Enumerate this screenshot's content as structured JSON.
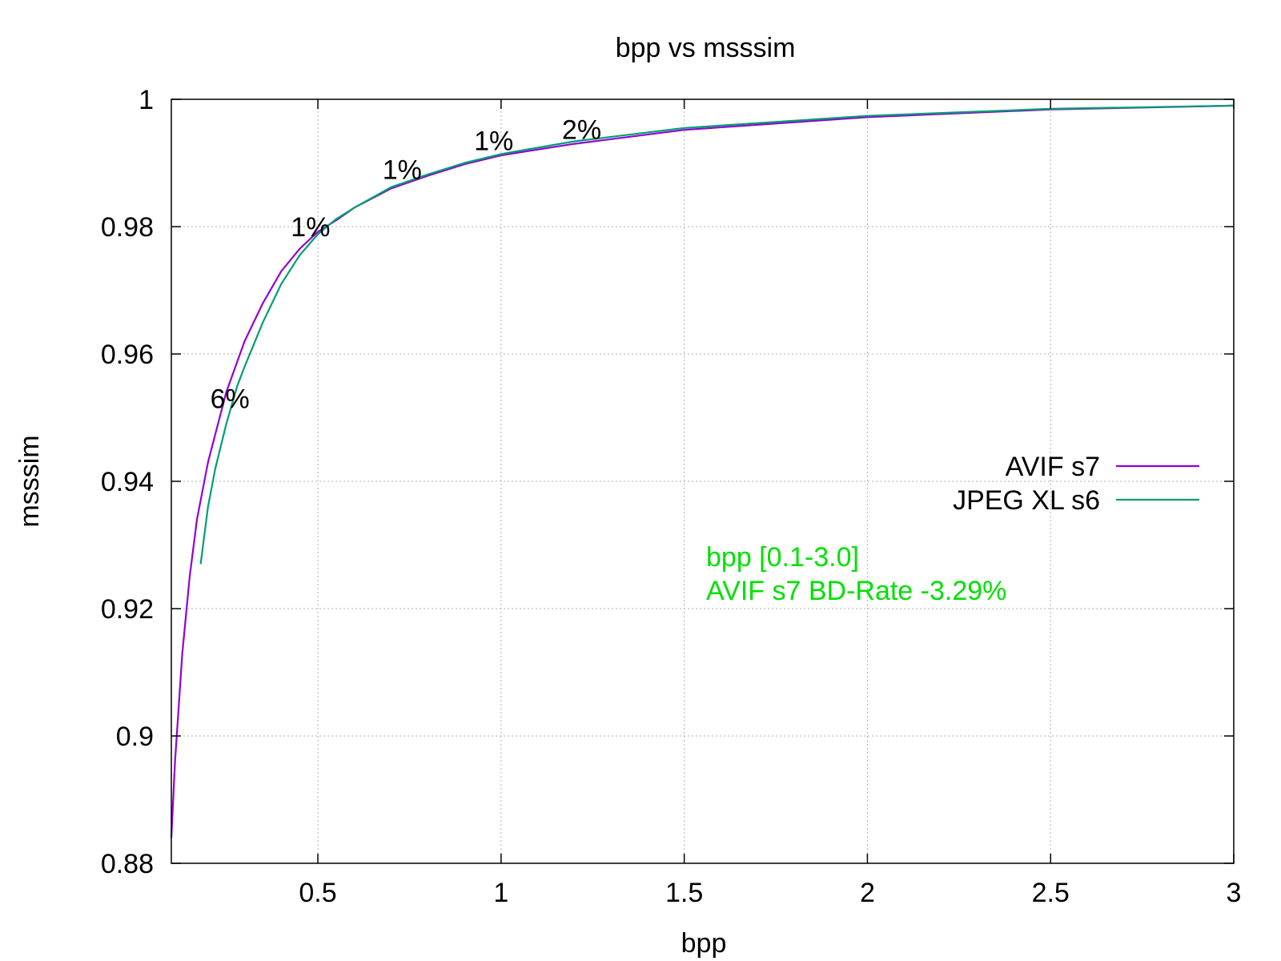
{
  "chart_data": {
    "type": "line",
    "title": "bpp vs msssim",
    "xlabel": "bpp",
    "ylabel": "msssim",
    "xlim": [
      0.1,
      3.0
    ],
    "ylim": [
      0.88,
      1.0
    ],
    "xticks": [
      0.5,
      1,
      1.5,
      2,
      2.5,
      3
    ],
    "xtick_labels": [
      "0.5",
      "1",
      "1.5",
      "2",
      "2.5",
      "3"
    ],
    "yticks": [
      0.88,
      0.9,
      0.92,
      0.94,
      0.96,
      0.98,
      1.0
    ],
    "ytick_labels": [
      "0.88",
      "0.9",
      "0.92",
      "0.94",
      "0.96",
      "0.98",
      "1"
    ],
    "grid": true,
    "legend_position": "right",
    "series": [
      {
        "name": "AVIF s7",
        "color": "#9400d3",
        "x": [
          0.1,
          0.11,
          0.13,
          0.15,
          0.17,
          0.2,
          0.25,
          0.3,
          0.35,
          0.4,
          0.45,
          0.5,
          0.55,
          0.6,
          0.7,
          0.8,
          0.9,
          1.0,
          1.2,
          1.5,
          2.0,
          2.5,
          3.0
        ],
        "y": [
          0.884,
          0.896,
          0.913,
          0.925,
          0.934,
          0.943,
          0.954,
          0.962,
          0.968,
          0.973,
          0.9765,
          0.9792,
          0.981,
          0.983,
          0.986,
          0.988,
          0.9898,
          0.9912,
          0.993,
          0.9952,
          0.9972,
          0.9984,
          0.999
        ]
      },
      {
        "name": "JPEG XL s6",
        "color": "#009e73",
        "x": [
          0.18,
          0.2,
          0.22,
          0.25,
          0.28,
          0.3,
          0.35,
          0.4,
          0.45,
          0.5,
          0.55,
          0.6,
          0.7,
          0.8,
          0.9,
          1.0,
          1.2,
          1.5,
          2.0,
          2.5,
          3.0
        ],
        "y": [
          0.927,
          0.936,
          0.942,
          0.949,
          0.955,
          0.958,
          0.965,
          0.971,
          0.9755,
          0.9788,
          0.9812,
          0.983,
          0.9862,
          0.9882,
          0.99,
          0.9914,
          0.9934,
          0.9955,
          0.9974,
          0.9985,
          0.999
        ]
      }
    ],
    "annotations": [
      {
        "text": "6%",
        "x": 0.26,
        "y": 0.953
      },
      {
        "text": "1%",
        "x": 0.48,
        "y": 0.98
      },
      {
        "text": "1%",
        "x": 0.73,
        "y": 0.989
      },
      {
        "text": "1%",
        "x": 0.98,
        "y": 0.9935
      },
      {
        "text": "2%",
        "x": 1.22,
        "y": 0.9953
      }
    ],
    "info_lines": {
      "color": "#00e000",
      "lines": [
        "bpp [0.1-3.0]",
        "AVIF s7 BD-Rate -3.29%"
      ]
    }
  }
}
